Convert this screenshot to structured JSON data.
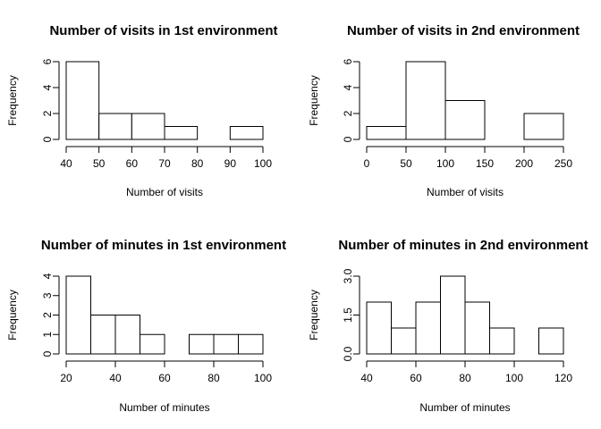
{
  "chart_data": [
    {
      "type": "bar",
      "title": "Number of visits in 1st environment",
      "xlabel": "Number of visits",
      "ylabel": "Frequency",
      "bin_edges": [
        40,
        50,
        60,
        70,
        80,
        90,
        100
      ],
      "values": [
        6,
        2,
        2,
        1,
        0,
        1
      ],
      "xticks": [
        40,
        50,
        60,
        70,
        80,
        90,
        100
      ],
      "xtick_labels": [
        "40",
        "50",
        "60",
        "70",
        "80",
        "90",
        "100"
      ],
      "yticks": [
        0,
        2,
        4,
        6
      ],
      "ytick_labels": [
        "0",
        "2",
        "4",
        "6"
      ],
      "xlim": [
        40,
        100
      ],
      "ylim": [
        0,
        6
      ],
      "grid": false
    },
    {
      "type": "bar",
      "title": "Number of visits in 2nd environment",
      "xlabel": "Number of visits",
      "ylabel": "Frequency",
      "bin_edges": [
        0,
        50,
        100,
        150,
        200,
        250
      ],
      "values": [
        1,
        6,
        3,
        0,
        2
      ],
      "xticks": [
        0,
        50,
        100,
        150,
        200,
        250
      ],
      "xtick_labels": [
        "0",
        "50",
        "100",
        "150",
        "200",
        "250"
      ],
      "yticks": [
        0,
        2,
        4,
        6
      ],
      "ytick_labels": [
        "0",
        "2",
        "4",
        "6"
      ],
      "xlim": [
        0,
        250
      ],
      "ylim": [
        0,
        6
      ],
      "grid": false
    },
    {
      "type": "bar",
      "title": "Number of minutes in 1st environment",
      "xlabel": "Number of minutes",
      "ylabel": "Frequency",
      "bin_edges": [
        20,
        30,
        40,
        50,
        60,
        70,
        80,
        90,
        100
      ],
      "values": [
        4,
        2,
        2,
        1,
        0,
        1,
        1,
        1
      ],
      "xticks": [
        20,
        40,
        60,
        80,
        100
      ],
      "xtick_labels": [
        "20",
        "40",
        "60",
        "80",
        "100"
      ],
      "yticks": [
        0,
        1,
        2,
        3,
        4
      ],
      "ytick_labels": [
        "0",
        "1",
        "2",
        "3",
        "4"
      ],
      "xlim": [
        20,
        100
      ],
      "ylim": [
        0,
        4
      ],
      "grid": false
    },
    {
      "type": "bar",
      "title": "Number of minutes in 2nd environment",
      "xlabel": "Number of minutes",
      "ylabel": "Frequency",
      "bin_edges": [
        40,
        50,
        60,
        70,
        80,
        90,
        100,
        110,
        120
      ],
      "values": [
        2,
        1,
        2,
        3,
        2,
        1,
        0,
        1
      ],
      "xticks": [
        40,
        60,
        80,
        100,
        120
      ],
      "xtick_labels": [
        "40",
        "60",
        "80",
        "100",
        "120"
      ],
      "yticks": [
        0,
        1.5,
        3
      ],
      "ytick_labels": [
        "0.0",
        "1.5",
        "3.0"
      ],
      "xlim": [
        40,
        120
      ],
      "ylim": [
        0,
        3
      ],
      "grid": false
    }
  ]
}
